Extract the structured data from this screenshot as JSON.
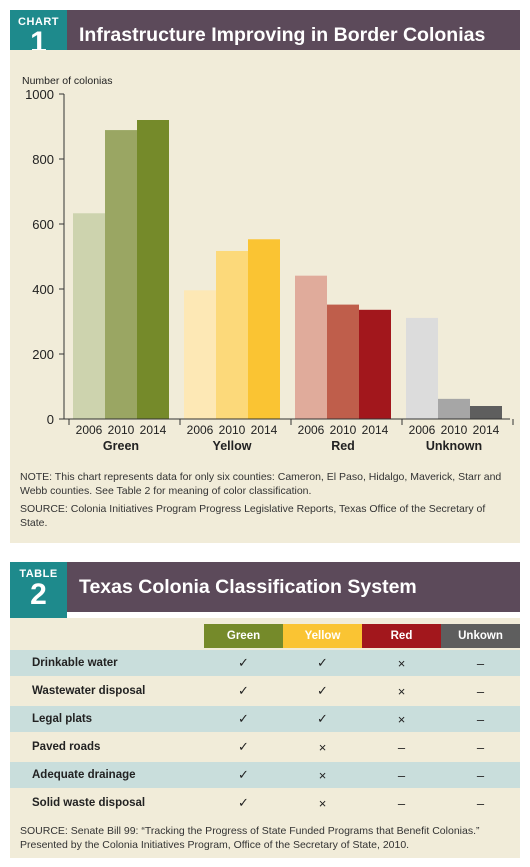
{
  "chart_header": {
    "tag": "CHART",
    "number": "1",
    "title": "Infrastructure Improving in Border Colonias"
  },
  "chart_data": {
    "type": "bar",
    "ylabel": "Number of colonias",
    "ylim": [
      0,
      1000
    ],
    "yticks": [
      0,
      200,
      400,
      600,
      800,
      1000
    ],
    "groups": [
      {
        "name": "Green",
        "years": [
          "2006",
          "2010",
          "2014"
        ],
        "values": [
          633,
          889,
          920
        ],
        "colors": [
          "#cdd3ae",
          "#9aa663",
          "#758a2a"
        ]
      },
      {
        "name": "Yellow",
        "years": [
          "2006",
          "2010",
          "2014"
        ],
        "values": [
          396,
          517,
          553
        ],
        "colors": [
          "#fde8b5",
          "#fcd97a",
          "#fac433"
        ]
      },
      {
        "name": "Red",
        "years": [
          "2006",
          "2010",
          "2014"
        ],
        "values": [
          441,
          352,
          336
        ],
        "colors": [
          "#e0ab9b",
          "#bf5e4b",
          "#a2171c"
        ]
      },
      {
        "name": "Unknown",
        "years": [
          "2006",
          "2010",
          "2014"
        ],
        "values": [
          311,
          62,
          40
        ],
        "colors": [
          "#dcdcdc",
          "#a6a6a6",
          "#5e5e5e"
        ]
      }
    ]
  },
  "chart_notes": {
    "note": "NOTE: This chart represents data for only six counties: Cameron, El Paso, Hidalgo, Maverick, Starr and Webb counties. See Table 2 for meaning of color classification.",
    "source": "SOURCE: Colonia Initiatives Program Progress Legislative Reports, Texas Office of the Secretary of State."
  },
  "table_header": {
    "tag": "TABLE",
    "number": "2",
    "title": "Texas Colonia Classification System"
  },
  "table": {
    "columns": [
      {
        "label": "Green",
        "color": "#758a2a"
      },
      {
        "label": "Yellow",
        "color": "#fac433"
      },
      {
        "label": "Red",
        "color": "#a2171c"
      },
      {
        "label": "Unkown",
        "color": "#5e5e5e"
      }
    ],
    "rows": [
      {
        "label": "Drinkable water",
        "cells": [
          "✓",
          "✓",
          "×",
          "–"
        ]
      },
      {
        "label": "Wastewater disposal",
        "cells": [
          "✓",
          "✓",
          "×",
          "–"
        ]
      },
      {
        "label": "Legal plats",
        "cells": [
          "✓",
          "✓",
          "×",
          "–"
        ]
      },
      {
        "label": "Paved roads",
        "cells": [
          "✓",
          "×",
          "–",
          "–"
        ]
      },
      {
        "label": "Adequate drainage",
        "cells": [
          "✓",
          "×",
          "–",
          "–"
        ]
      },
      {
        "label": "Solid waste disposal",
        "cells": [
          "✓",
          "×",
          "–",
          "–"
        ]
      }
    ],
    "source": "SOURCE: Senate Bill 99: “Tracking the Progress of State Funded Programs that Benefit Colonias.” Presented by the Colonia Initiatives Program, Office of the Secretary of State, 2010."
  }
}
